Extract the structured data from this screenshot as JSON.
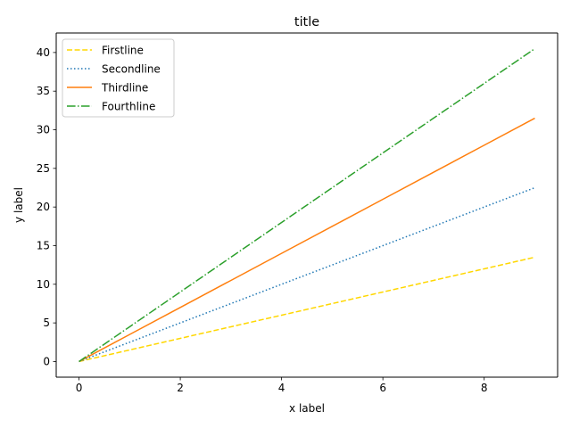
{
  "chart_data": {
    "type": "line",
    "title": "title",
    "xlabel": "x label",
    "ylabel": "y label",
    "xlim": [
      -0.45,
      9.45
    ],
    "ylim": [
      -2.025,
      42.525
    ],
    "xticks": [
      0,
      2,
      4,
      6,
      8
    ],
    "yticks": [
      0,
      5,
      10,
      15,
      20,
      25,
      30,
      35,
      40
    ],
    "grid": false,
    "legend_position": "top-left",
    "x": [
      0,
      1,
      2,
      3,
      4,
      5,
      6,
      7,
      8,
      9
    ],
    "series": [
      {
        "name": "Firstline",
        "values": [
          0,
          1.5,
          3,
          4.5,
          6,
          7.5,
          9,
          10.5,
          12,
          13.5
        ],
        "color": "#ffd700",
        "style": "dashed"
      },
      {
        "name": "Secondline",
        "values": [
          0,
          2.5,
          5,
          7.5,
          10,
          12.5,
          15,
          17.5,
          20,
          22.5
        ],
        "color": "#1f77b4",
        "style": "dotted"
      },
      {
        "name": "Thirdline",
        "values": [
          0,
          3.5,
          7,
          10.5,
          14,
          17.5,
          21,
          24.5,
          28,
          31.5
        ],
        "color": "#ff7f0e",
        "style": "solid"
      },
      {
        "name": "Fourthline",
        "values": [
          0,
          4.5,
          9,
          13.5,
          18,
          22.5,
          27,
          31.5,
          36,
          40.5
        ],
        "color": "#2ca02c",
        "style": "dashdot"
      }
    ]
  }
}
